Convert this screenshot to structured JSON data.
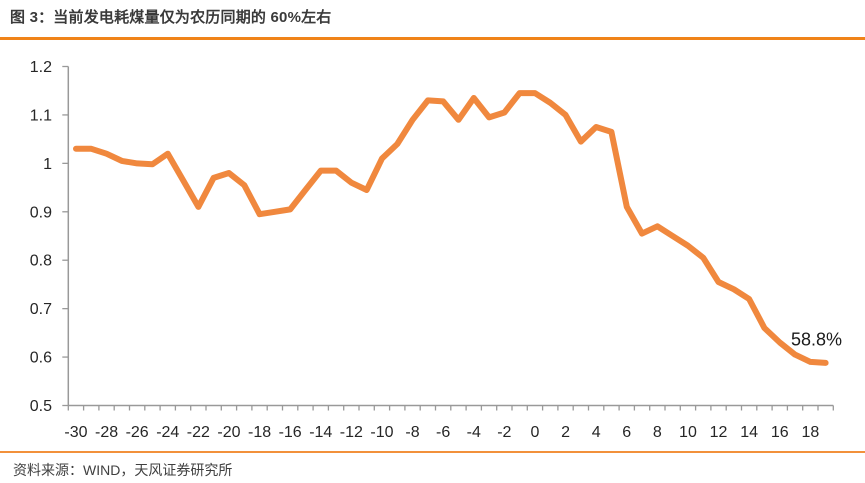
{
  "figure": {
    "title": "图 3：当前发电耗煤量仅为农历同期的 60%左右",
    "source": "资料来源：WIND，天风证券研究所"
  },
  "colors": {
    "accent_orange": "#F08318",
    "footer_orange": "#F2913B",
    "line_orange": "#F0883E",
    "axis_gray": "#999999",
    "tick_label": "#262626",
    "annotation_text": "#1a1a1a"
  },
  "chart_data": {
    "type": "line",
    "title": "图 3：当前发电耗煤量仅为农历同期的 60%左右",
    "xlabel": "",
    "ylabel": "",
    "grid": false,
    "legend": false,
    "ylim": [
      0.5,
      1.2
    ],
    "ytick_values": [
      1.2,
      1.1,
      1.0,
      0.9,
      0.8,
      0.7,
      0.6,
      0.5
    ],
    "ytick_labels": [
      "1.2",
      "1.1",
      "1",
      "0.9",
      "0.8",
      "0.7",
      "0.6",
      "0.5"
    ],
    "xtick_label_every": 2,
    "line_color": "#F0883E",
    "x": [
      -30,
      -29,
      -28,
      -27,
      -26,
      -25,
      -24,
      -23,
      -22,
      -21,
      -20,
      -19,
      -18,
      -17,
      -16,
      -15,
      -14,
      -13,
      -12,
      -11,
      -10,
      -9,
      -8,
      -7,
      -6,
      -5,
      -4,
      -3,
      -2,
      -1,
      0,
      1,
      2,
      3,
      4,
      5,
      6,
      7,
      8,
      9,
      10,
      11,
      12,
      13,
      14,
      15,
      16,
      17,
      18,
      19
    ],
    "values": [
      1.03,
      1.03,
      1.02,
      1.005,
      1.0,
      0.998,
      1.02,
      0.965,
      0.91,
      0.97,
      0.98,
      0.955,
      0.895,
      0.9,
      0.905,
      0.945,
      0.985,
      0.985,
      0.96,
      0.945,
      1.01,
      1.04,
      1.09,
      1.13,
      1.128,
      1.09,
      1.135,
      1.095,
      1.105,
      1.145,
      1.145,
      1.125,
      1.1,
      1.045,
      1.075,
      1.065,
      0.91,
      0.855,
      0.87,
      0.85,
      0.83,
      0.805,
      0.755,
      0.74,
      0.72,
      0.66,
      0.63,
      0.605,
      0.59,
      0.588
    ],
    "annotation": {
      "text": "58.8%",
      "x": 18.4,
      "y": 0.636
    }
  }
}
